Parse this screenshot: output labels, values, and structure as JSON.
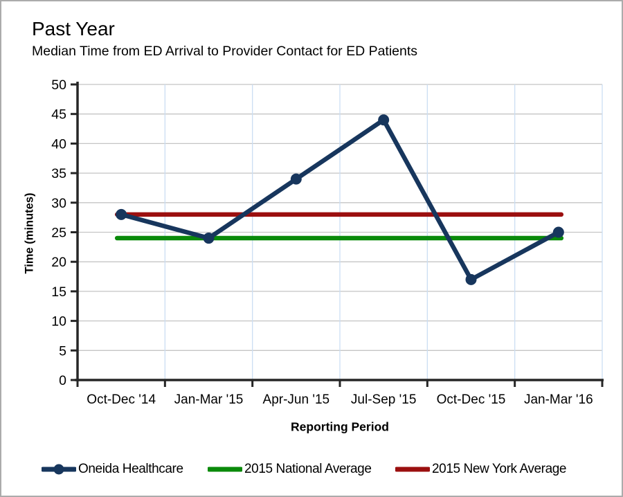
{
  "window": {
    "background": "#FFFFFF",
    "border_color": "#ABABAB"
  },
  "header": {
    "title": "Past Year",
    "subtitle": "Median Time from ED Arrival to Provider Contact for ED Patients"
  },
  "chart_data": {
    "type": "line",
    "title": "Past Year",
    "subtitle": "Median Time from ED Arrival to Provider Contact for ED Patients",
    "xlabel": "Reporting Period",
    "ylabel": "Time (minutes)",
    "ylim": [
      0,
      50
    ],
    "ytick_step": 5,
    "ytick_labels": [
      "0",
      "5",
      "10",
      "15",
      "20",
      "25",
      "30",
      "35",
      "40",
      "45",
      "50"
    ],
    "grid": true,
    "legend_position": "bottom",
    "categories": [
      "Oct-Dec '14",
      "Jan-Mar '15",
      "Apr-Jun '15",
      "Jul-Sep '15",
      "Oct-Dec '15",
      "Jan-Mar '16"
    ],
    "series": [
      {
        "name": "Oneida Healthcare",
        "style": "line-markers",
        "color": "#17365D",
        "values": [
          28,
          24,
          34,
          44,
          17,
          25
        ]
      },
      {
        "name": "2015 National Average",
        "style": "line",
        "color": "#0A8A0A",
        "values": [
          24,
          24,
          24,
          24,
          24,
          24
        ]
      },
      {
        "name": "2015 New York Average",
        "style": "line",
        "color": "#9B0F0F",
        "values": [
          28,
          28,
          28,
          28,
          28,
          28
        ]
      }
    ],
    "colors": {
      "h_gridline": "#C4C4C4",
      "v_gridline": "#CBDEF3",
      "axis": "#262626",
      "text": "#000000"
    }
  }
}
